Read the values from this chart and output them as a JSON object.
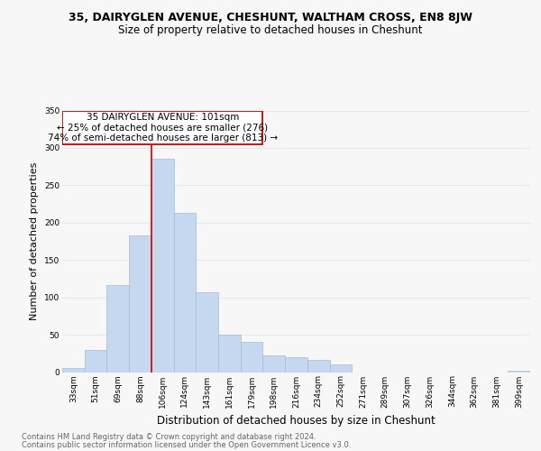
{
  "title": "35, DAIRYGLEN AVENUE, CHESHUNT, WALTHAM CROSS, EN8 8JW",
  "subtitle": "Size of property relative to detached houses in Cheshunt",
  "xlabel": "Distribution of detached houses by size in Cheshunt",
  "ylabel": "Number of detached properties",
  "footer_line1": "Contains HM Land Registry data © Crown copyright and database right 2024.",
  "footer_line2": "Contains public sector information licensed under the Open Government Licence v3.0.",
  "categories": [
    "33sqm",
    "51sqm",
    "69sqm",
    "88sqm",
    "106sqm",
    "124sqm",
    "143sqm",
    "161sqm",
    "179sqm",
    "198sqm",
    "216sqm",
    "234sqm",
    "252sqm",
    "271sqm",
    "289sqm",
    "307sqm",
    "326sqm",
    "344sqm",
    "362sqm",
    "381sqm",
    "399sqm"
  ],
  "values": [
    5,
    29,
    117,
    183,
    285,
    213,
    107,
    50,
    40,
    22,
    20,
    16,
    10,
    0,
    0,
    0,
    0,
    0,
    0,
    0,
    2
  ],
  "bar_color": "#c5d8ef",
  "bar_edge_color": "#a0bcd8",
  "property_line_bin_index": 4,
  "annotation_text_line1": "35 DAIRYGLEN AVENUE: 101sqm",
  "annotation_text_line2": "← 25% of detached houses are smaller (276)",
  "annotation_text_line3": "74% of semi-detached houses are larger (813) →",
  "annotation_box_edgecolor": "#cc0000",
  "annotation_line_color": "#cc0000",
  "ylim": [
    0,
    350
  ],
  "yticks": [
    0,
    50,
    100,
    150,
    200,
    250,
    300,
    350
  ],
  "background_color": "#f7f7f7",
  "grid_color": "#e8e8e8",
  "title_fontsize": 9,
  "subtitle_fontsize": 8.5,
  "ylabel_fontsize": 8,
  "xlabel_fontsize": 8.5,
  "tick_fontsize": 6.5,
  "annotation_fontsize": 7.5,
  "footer_fontsize": 6
}
